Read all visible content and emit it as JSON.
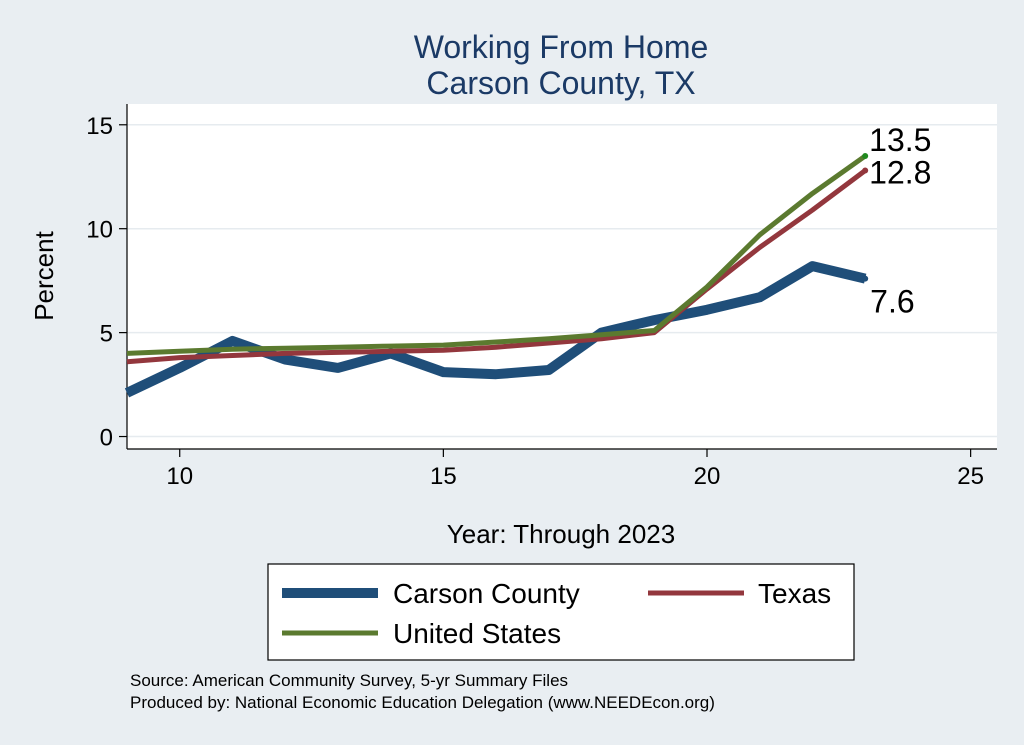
{
  "chart_data": {
    "type": "line",
    "title": [
      "Working From Home",
      "Carson County, TX"
    ],
    "xlabel": "Year: Through 2023",
    "ylabel": "Percent",
    "xlim": [
      9,
      25.5
    ],
    "ylim": [
      -0.6,
      16
    ],
    "xticks": [
      10,
      15,
      20,
      25
    ],
    "yticks": [
      0,
      5,
      10,
      15
    ],
    "grid": true,
    "legend_position": "bottom",
    "series": [
      {
        "name": "Carson County",
        "color": "#1f4e79",
        "width": 10,
        "x": [
          9,
          10,
          11,
          12,
          13,
          14,
          15,
          16,
          17,
          18,
          19,
          20,
          21,
          22,
          23
        ],
        "y": [
          2.1,
          3.3,
          4.6,
          3.7,
          3.3,
          4.0,
          3.1,
          3.0,
          3.2,
          5.0,
          5.6,
          6.1,
          6.7,
          8.2,
          7.6
        ],
        "end_label": "7.6"
      },
      {
        "name": "Texas",
        "color": "#93373d",
        "width": 5,
        "x": [
          9,
          10,
          11,
          12,
          13,
          14,
          15,
          16,
          17,
          18,
          19,
          20,
          21,
          22,
          23
        ],
        "y": [
          3.6,
          3.8,
          3.9,
          4.0,
          4.05,
          4.1,
          4.15,
          4.3,
          4.5,
          4.7,
          5.0,
          7.1,
          9.1,
          10.9,
          12.8
        ],
        "end_label": "12.8"
      },
      {
        "name": "United States",
        "color": "#5b7a2f",
        "width": 5,
        "x": [
          9,
          10,
          11,
          12,
          13,
          14,
          15,
          16,
          17,
          18,
          19,
          20,
          21,
          22,
          23
        ],
        "y": [
          4.0,
          4.1,
          4.2,
          4.25,
          4.3,
          4.35,
          4.4,
          4.55,
          4.7,
          4.9,
          5.1,
          7.2,
          9.7,
          11.7,
          13.5
        ],
        "end_label": "13.5"
      }
    ],
    "notes": [
      "Source: American Community Survey, 5-yr Summary Files",
      "Produced by: National Economic Education Delegation (www.NEEDEcon.org)"
    ]
  }
}
